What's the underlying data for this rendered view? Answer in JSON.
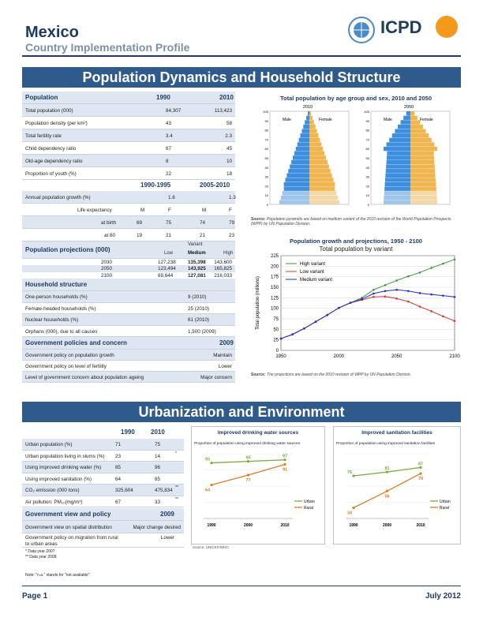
{
  "header": {
    "title": "Mexico",
    "subtitle": "Country Implementation Profile",
    "logo_text": "ICPD"
  },
  "sec1": {
    "banner": "Population Dynamics and Household Structure"
  },
  "pop": {
    "head": "Population",
    "y1": "1990",
    "y2": "2010",
    "rows": [
      [
        "Total population (000)",
        "84,307",
        "113,423"
      ],
      [
        "Population density (per km²)",
        "43",
        "58"
      ],
      [
        "Total fertility rate",
        "3.4",
        "2.3"
      ],
      [
        "Child dependency ratio",
        "67",
        "45"
      ],
      [
        "Old-age dependency ratio",
        "8",
        "10"
      ],
      [
        "Proportion of youth (%)",
        "22",
        "18"
      ]
    ],
    "p1": "1990-1995",
    "p2": "2005-2010",
    "growth": [
      "Annual population growth (%)",
      "1.8",
      "1.3"
    ],
    "le_label": "Life expectancy",
    "le_m": "M",
    "le_f": "F",
    "le_birth": [
      "at birth",
      "69",
      "75",
      "74",
      "79"
    ],
    "le_60": [
      "at 60",
      "19",
      "21",
      "21",
      "23"
    ]
  },
  "proj": {
    "head": "Population projections (000)",
    "variant": "Variant",
    "low": "Low",
    "medium": "Medium",
    "high": "High",
    "rows": [
      [
        "2030",
        "127,238",
        "135,398",
        "143,600"
      ],
      [
        "2050",
        "123,494",
        "143,925",
        "165,825"
      ],
      [
        "2100",
        "69,644",
        "127,081",
        "216,033"
      ]
    ]
  },
  "hh": {
    "head": "Household structure",
    "rows": [
      [
        "One-person households (%)",
        "9 (2010)"
      ],
      [
        "Female-headed households (%)",
        "25 (2010)"
      ],
      [
        "Nuclear households (%)",
        "61 (2010)"
      ],
      [
        "Orphans (000), due to all causes",
        "1,500 (2009)"
      ]
    ]
  },
  "gov": {
    "head": "Government policies and concern",
    "year": "2009",
    "rows": [
      [
        "Government policy on population growth",
        "Maintain"
      ],
      [
        "Government policy on level of fertility",
        "Lower"
      ],
      [
        "Level of government concern about population ageing",
        "Major concern"
      ]
    ]
  },
  "pyramid": {
    "title": "Total population by age group and sex, 2010 and 2050",
    "y1": "2010",
    "y2": "2050",
    "male": "Male",
    "female": "Female",
    "ticks": [
      "100",
      "90",
      "80",
      "70",
      "60",
      "50",
      "40",
      "30",
      "20",
      "10",
      "0"
    ],
    "source_b": "Source:",
    "source": " Population pyramids are based on medium variant of the 2010 revision of the World Population Prospects (WPP) by UN Population Division."
  },
  "growth_chart": {
    "title": "Population growth and projections, 1950 - 2100",
    "subtitle": "Total population by variant",
    "ylabel": "Total population (millions)",
    "source_b": "Source:",
    "source": " The projections are based on the 2010 revision of WPP by UN Population Division."
  },
  "chart_data": [
    {
      "type": "line",
      "title": "Population growth and projections, 1950 - 2100",
      "x": [
        1950,
        1960,
        1970,
        1980,
        1990,
        2000,
        2010,
        2020,
        2030,
        2040,
        2050,
        2060,
        2070,
        2080,
        2090,
        2100
      ],
      "xticks": [
        "1950",
        "2000",
        "2050",
        "2100"
      ],
      "yticks": [
        "0",
        "25",
        "50",
        "75",
        "100",
        "125",
        "150",
        "175",
        "200",
        "225"
      ],
      "ylim": [
        0,
        225
      ],
      "xlim": [
        1950,
        2100
      ],
      "series": [
        {
          "name": "High variant",
          "color": "#3a9a3a",
          "values": [
            28,
            38,
            52,
            68,
            84,
            101,
            113,
            125,
            144,
            155,
            166,
            176,
            185,
            196,
            206,
            216
          ]
        },
        {
          "name": "Low variant",
          "color": "#d93030",
          "values": [
            28,
            38,
            52,
            68,
            84,
            101,
            113,
            120,
            127,
            128,
            123,
            116,
            104,
            93,
            81,
            70
          ]
        },
        {
          "name": "Medium variant",
          "color": "#1a2fd0",
          "values": [
            28,
            38,
            52,
            68,
            84,
            101,
            113,
            122,
            135,
            141,
            144,
            141,
            136,
            133,
            130,
            127
          ]
        }
      ],
      "legend": "top-left"
    },
    {
      "type": "line",
      "title": "Improved drinking water sources",
      "subtitle": "Proportion of population using improved drinking water sources",
      "x": [
        "1990",
        "2000",
        "2010"
      ],
      "series": [
        {
          "name": "Urban",
          "color": "#7aab3a",
          "values": [
            93,
            95,
            97
          ]
        },
        {
          "name": "Rural",
          "color": "#e07b22",
          "values": [
            64,
            77,
            91
          ]
        }
      ]
    },
    {
      "type": "line",
      "title": "Improved sanitation facilities",
      "subtitle": "Proportion of population using improved sanitation facilities",
      "x": [
        "1990",
        "2000",
        "2010"
      ],
      "series": [
        {
          "name": "Urban",
          "color": "#7aab3a",
          "values": [
            76,
            81,
            87
          ]
        },
        {
          "name": "Rural",
          "color": "#e07b22",
          "values": [
            34,
            56,
            79
          ]
        }
      ]
    }
  ],
  "sec2": {
    "banner": "Urbanization and Environment"
  },
  "urb": {
    "y1": "1990",
    "y2": "2010",
    "rows": [
      [
        "Urban population (%)",
        "71",
        "75",
        ""
      ],
      [
        "Urban population living in slums (%)",
        "23",
        "14",
        "*"
      ],
      [
        "Using improved drinking water (%)",
        "85",
        "96",
        ""
      ],
      [
        "Using improved sanitation (%)",
        "64",
        "85",
        ""
      ],
      [
        "CO₂ emission (000 tons)",
        "325,604",
        "475,834",
        "**"
      ],
      [
        "Air pollution: PM₁₀(mg/m³)",
        "67",
        "33",
        "**"
      ]
    ],
    "gov_head": "Government view and policy",
    "gov_year": "2009",
    "gov_rows": [
      [
        "Government view on spatial distribution",
        "Major change desired"
      ],
      [
        "Government policy on migration from rural to urban areas",
        "Lower"
      ]
    ],
    "note1": "* Data year 2007",
    "note2": "** Data year 2008",
    "note3": "Note: \"n.a.\" stands for \"not available\"."
  },
  "water": {
    "title": "Improved drinking water sources",
    "sub": "Proportion of population using improved drinking water sources",
    "source": "Source: UNICEF/WHO"
  },
  "sanit": {
    "title": "Improved sanitation facilities",
    "sub": "Proportion of population using improved sanitation facilities",
    "source": "Source: UNICEF/WHO"
  },
  "footer": {
    "page": "Page 1",
    "date": "July 2012"
  }
}
